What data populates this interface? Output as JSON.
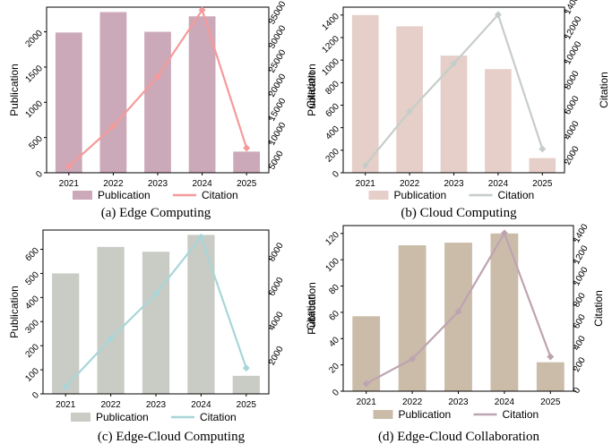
{
  "chart_data": [
    {
      "type": "bar+line",
      "caption": "(a) Edge Computing",
      "categories": [
        "2021",
        "2022",
        "2023",
        "2024",
        "2025"
      ],
      "series": [
        {
          "name": "Publication",
          "type": "bar",
          "axis": "left",
          "values": [
            1990,
            2280,
            2000,
            2220,
            300
          ]
        },
        {
          "name": "Citation",
          "type": "line",
          "axis": "right",
          "values": [
            5200,
            13500,
            23800,
            37500,
            9000
          ]
        }
      ],
      "ylabel_left": "Publication",
      "ylabel_right": "Citation",
      "yticks_left": [
        0,
        500,
        1000,
        1500,
        2000
      ],
      "ylim_left": [
        0,
        2350
      ],
      "yticks_right": [
        5000,
        10000,
        15000,
        20000,
        25000,
        30000,
        35000
      ],
      "ylim_right": [
        3900,
        38100
      ],
      "colors": {
        "bar": "#cba9b8",
        "line": "#f59a9a"
      },
      "legend": "bottom"
    },
    {
      "type": "bar+line",
      "caption": "(b) Cloud Computing",
      "categories": [
        "2021",
        "2022",
        "2023",
        "2024",
        "2025"
      ],
      "series": [
        {
          "name": "Publication",
          "type": "bar",
          "axis": "left",
          "values": [
            1400,
            1300,
            1040,
            920,
            130
          ]
        },
        {
          "name": "Citation",
          "type": "line",
          "axis": "right",
          "values": [
            1800,
            6100,
            9900,
            13800,
            3100
          ]
        }
      ],
      "ylabel_left": "Publication",
      "ylabel_right": "Citation",
      "yticks_left": [
        0,
        200,
        400,
        600,
        800,
        1000,
        1200,
        1400
      ],
      "ylim_left": [
        0,
        1470
      ],
      "yticks_right": [
        2000,
        4000,
        6000,
        8000,
        10000,
        12000,
        14000
      ],
      "ylim_right": [
        1200,
        14400
      ],
      "colors": {
        "bar": "#e5cfc8",
        "line": "#c6cdc9"
      },
      "legend": "bottom"
    },
    {
      "type": "bar+line",
      "caption": "(c) Edge-Cloud Computing",
      "categories": [
        "2021",
        "2022",
        "2023",
        "2024",
        "2025"
      ],
      "series": [
        {
          "name": "Publication",
          "type": "bar",
          "axis": "left",
          "values": [
            500,
            610,
            590,
            660,
            75
          ]
        },
        {
          "name": "Citation",
          "type": "line",
          "axis": "right",
          "values": [
            600,
            3400,
            6000,
            9300,
            1700
          ]
        }
      ],
      "ylabel_left": "Publication",
      "ylabel_right": "Citation",
      "yticks_left": [
        0,
        100,
        200,
        300,
        400,
        500,
        600
      ],
      "ylim_left": [
        0,
        680
      ],
      "yticks_right": [
        2000,
        4000,
        6000,
        8000
      ],
      "ylim_right": [
        200,
        9700
      ],
      "colors": {
        "bar": "#c9cbc5",
        "line": "#a8d6d8"
      },
      "legend": "bottom"
    },
    {
      "type": "bar+line",
      "caption": "(d) Edge-Cloud Collaboration",
      "categories": [
        "2021",
        "2022",
        "2023",
        "2024",
        "2025"
      ],
      "series": [
        {
          "name": "Publication",
          "type": "bar",
          "axis": "left",
          "values": [
            57,
            111,
            113,
            120,
            22
          ]
        },
        {
          "name": "Citation",
          "type": "line",
          "axis": "right",
          "values": [
            70,
            300,
            740,
            1470,
            320
          ]
        }
      ],
      "ylabel_left": "Publication",
      "ylabel_right": "Citation",
      "yticks_left": [
        0,
        20,
        40,
        60,
        80,
        100,
        120
      ],
      "ylim_left": [
        0,
        126
      ],
      "yticks_right": [
        0,
        200,
        400,
        600,
        800,
        1000,
        1200,
        1400
      ],
      "ylim_right": [
        0,
        1540
      ],
      "colors": {
        "bar": "#cbbcaa",
        "line": "#bda4b0"
      },
      "legend": "bottom"
    }
  ]
}
